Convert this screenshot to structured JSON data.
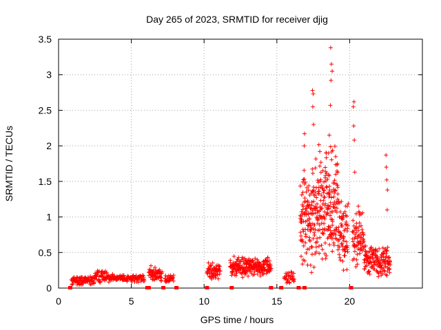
{
  "chart_data": {
    "type": "scatter",
    "title": "Day 265 of 2023, SRMTID for receiver djig",
    "xlabel": "GPS time / hours",
    "ylabel": "SRMTID / TECUs",
    "xlim": [
      0,
      25
    ],
    "ylim": [
      0,
      3.5
    ],
    "x_ticks": [
      0,
      5,
      10,
      15,
      20
    ],
    "y_ticks": [
      0,
      0.5,
      1,
      1.5,
      2,
      2.5,
      3,
      3.5
    ],
    "x_tick_labels": [
      "0",
      "5",
      "10",
      "15",
      "20"
    ],
    "y_tick_labels": [
      "0",
      "0.5",
      "1",
      "1.5",
      "2",
      "2.5",
      "3",
      "3.5"
    ],
    "grid": true,
    "marker": "+",
    "colors": {
      "series": "#ff0000",
      "grid": "#a0a0a0",
      "axis": "#000000"
    },
    "series": [
      {
        "name": "SRMTID",
        "segments": [
          {
            "start": 0.9,
            "end": 2.5,
            "base": 0.11,
            "jitter": 0.05,
            "points": 95
          },
          {
            "start": 2.5,
            "end": 3.3,
            "base": 0.17,
            "jitter": 0.06,
            "points": 45
          },
          {
            "start": 3.3,
            "end": 5.9,
            "base": 0.14,
            "jitter": 0.04,
            "points": 130
          },
          {
            "start": 6.2,
            "end": 7.1,
            "base": 0.2,
            "jitter": 0.08,
            "points": 55
          },
          {
            "start": 7.3,
            "end": 7.9,
            "base": 0.13,
            "jitter": 0.04,
            "points": 30
          },
          {
            "start": 10.2,
            "end": 11.1,
            "base": 0.24,
            "jitter": 0.09,
            "points": 60
          },
          {
            "start": 11.8,
            "end": 14.6,
            "base": 0.3,
            "jitter": 0.1,
            "points": 230
          },
          {
            "start": 15.5,
            "end": 16.2,
            "base": 0.15,
            "jitter": 0.06,
            "points": 35
          },
          {
            "start": 16.6,
            "end": 17.4,
            "base": 0.95,
            "jitter": 0.5,
            "points": 95
          },
          {
            "start": 17.4,
            "end": 18.3,
            "base": 1.15,
            "jitter": 0.55,
            "points": 110
          },
          {
            "start": 18.3,
            "end": 19.2,
            "base": 1.2,
            "jitter": 0.6,
            "points": 110
          },
          {
            "start": 19.2,
            "end": 19.9,
            "base": 0.75,
            "jitter": 0.35,
            "points": 70
          },
          {
            "start": 20.2,
            "end": 21.0,
            "base": 0.7,
            "jitter": 0.3,
            "points": 70
          },
          {
            "start": 21.0,
            "end": 22.8,
            "base": 0.38,
            "jitter": 0.15,
            "points": 150
          }
        ],
        "peaks": [
          {
            "x": 18.7,
            "y": 3.38
          },
          {
            "x": 18.75,
            "y": 3.15
          },
          {
            "x": 18.8,
            "y": 3.05
          },
          {
            "x": 18.72,
            "y": 2.92
          },
          {
            "x": 18.68,
            "y": 2.57
          },
          {
            "x": 17.45,
            "y": 2.78
          },
          {
            "x": 17.5,
            "y": 2.73
          },
          {
            "x": 17.47,
            "y": 2.55
          },
          {
            "x": 17.52,
            "y": 2.3
          },
          {
            "x": 20.3,
            "y": 2.62
          },
          {
            "x": 20.25,
            "y": 2.55
          },
          {
            "x": 20.28,
            "y": 2.28
          },
          {
            "x": 20.32,
            "y": 2.08
          },
          {
            "x": 16.9,
            "y": 2.17
          },
          {
            "x": 16.88,
            "y": 2.0
          },
          {
            "x": 22.5,
            "y": 1.87
          },
          {
            "x": 22.52,
            "y": 1.7
          },
          {
            "x": 22.55,
            "y": 1.52
          },
          {
            "x": 22.6,
            "y": 1.38
          },
          {
            "x": 22.58,
            "y": 1.1
          },
          {
            "x": 20.35,
            "y": 1.63
          },
          {
            "x": 17.95,
            "y": 1.92
          },
          {
            "x": 18.4,
            "y": 1.9
          },
          {
            "x": 18.6,
            "y": 2.15
          },
          {
            "x": 19.05,
            "y": 1.6
          },
          {
            "x": 20.6,
            "y": 1.15
          }
        ],
        "zeros": [
          0.8,
          6.1,
          6.2,
          7.2,
          8.1,
          10.2,
          11.9,
          14.6,
          15.3,
          16.5,
          16.9,
          20.1
        ]
      }
    ]
  }
}
